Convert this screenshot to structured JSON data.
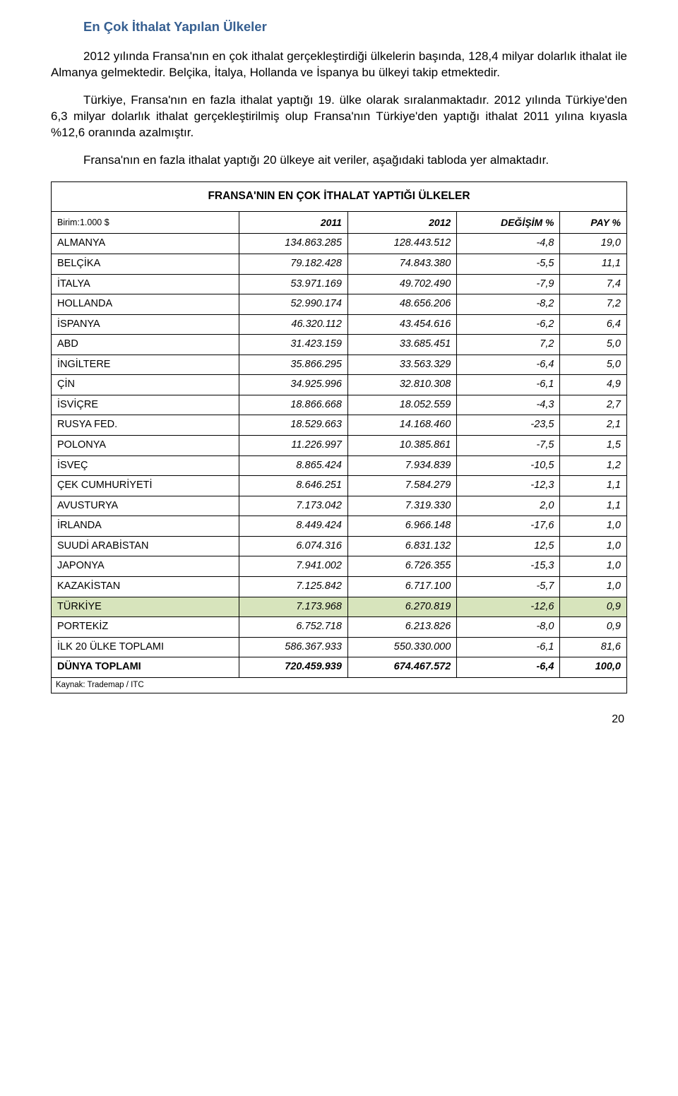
{
  "heading": "En Çok İthalat Yapılan Ülkeler",
  "para1": "2012 yılında Fransa'nın en çok ithalat gerçekleştirdiği ülkelerin başında, 128,4 milyar dolarlık ithalat ile Almanya gelmektedir. Belçika, İtalya, Hollanda ve İspanya bu ülkeyi takip etmektedir.",
  "para2": "Türkiye, Fransa'nın en fazla ithalat yaptığı 19. ülke olarak sıralanmaktadır. 2012 yılında Türkiye'den 6,3 milyar dolarlık ithalat gerçekleştirilmiş olup Fransa'nın Türkiye'den yaptığı ithalat 2011 yılına kıyasla %12,6 oranında azalmıştır.",
  "para3": "Fransa'nın en fazla ithalat yaptığı 20 ülkeye ait veriler, aşağıdaki tabloda yer almaktadır.",
  "table": {
    "title": "FRANSA'NIN EN ÇOK İTHALAT YAPTIĞI ÜLKELER",
    "unit_label": "Birim:1.000 $",
    "columns": [
      "2011",
      "2012",
      "DEĞİŞİM %",
      "PAY %"
    ],
    "rows": [
      {
        "country": "ALMANYA",
        "c2011": "134.863.285",
        "c2012": "128.443.512",
        "change": "-4,8",
        "share": "19,0"
      },
      {
        "country": "BELÇİKA",
        "c2011": "79.182.428",
        "c2012": "74.843.380",
        "change": "-5,5",
        "share": "11,1"
      },
      {
        "country": "İTALYA",
        "c2011": "53.971.169",
        "c2012": "49.702.490",
        "change": "-7,9",
        "share": "7,4"
      },
      {
        "country": "HOLLANDA",
        "c2011": "52.990.174",
        "c2012": "48.656.206",
        "change": "-8,2",
        "share": "7,2"
      },
      {
        "country": "İSPANYA",
        "c2011": "46.320.112",
        "c2012": "43.454.616",
        "change": "-6,2",
        "share": "6,4"
      },
      {
        "country": "ABD",
        "c2011": "31.423.159",
        "c2012": "33.685.451",
        "change": "7,2",
        "share": "5,0"
      },
      {
        "country": "İNGİLTERE",
        "c2011": "35.866.295",
        "c2012": "33.563.329",
        "change": "-6,4",
        "share": "5,0"
      },
      {
        "country": "ÇİN",
        "c2011": "34.925.996",
        "c2012": "32.810.308",
        "change": "-6,1",
        "share": "4,9"
      },
      {
        "country": "İSVİÇRE",
        "c2011": "18.866.668",
        "c2012": "18.052.559",
        "change": "-4,3",
        "share": "2,7"
      },
      {
        "country": "RUSYA FED.",
        "c2011": "18.529.663",
        "c2012": "14.168.460",
        "change": "-23,5",
        "share": "2,1"
      },
      {
        "country": "POLONYA",
        "c2011": "11.226.997",
        "c2012": "10.385.861",
        "change": "-7,5",
        "share": "1,5"
      },
      {
        "country": "İSVEÇ",
        "c2011": "8.865.424",
        "c2012": "7.934.839",
        "change": "-10,5",
        "share": "1,2"
      },
      {
        "country": "ÇEK CUMHURİYETİ",
        "c2011": "8.646.251",
        "c2012": "7.584.279",
        "change": "-12,3",
        "share": "1,1"
      },
      {
        "country": "AVUSTURYA",
        "c2011": "7.173.042",
        "c2012": "7.319.330",
        "change": "2,0",
        "share": "1,1"
      },
      {
        "country": "İRLANDA",
        "c2011": "8.449.424",
        "c2012": "6.966.148",
        "change": "-17,6",
        "share": "1,0"
      },
      {
        "country": "SUUDİ ARABİSTAN",
        "c2011": "6.074.316",
        "c2012": "6.831.132",
        "change": "12,5",
        "share": "1,0"
      },
      {
        "country": "JAPONYA",
        "c2011": "7.941.002",
        "c2012": "6.726.355",
        "change": "-15,3",
        "share": "1,0"
      },
      {
        "country": "KAZAKİSTAN",
        "c2011": "7.125.842",
        "c2012": "6.717.100",
        "change": "-5,7",
        "share": "1,0"
      },
      {
        "country": "TÜRKİYE",
        "c2011": "7.173.968",
        "c2012": "6.270.819",
        "change": "-12,6",
        "share": "0,9",
        "highlight": true
      },
      {
        "country": "PORTEKİZ",
        "c2011": "6.752.718",
        "c2012": "6.213.826",
        "change": "-8,0",
        "share": "0,9"
      },
      {
        "country": "İLK 20 ÜLKE TOPLAMI",
        "c2011": "586.367.933",
        "c2012": "550.330.000",
        "change": "-6,1",
        "share": "81,6"
      }
    ],
    "total_row": {
      "country": "DÜNYA TOPLAMI",
      "c2011": "720.459.939",
      "c2012": "674.467.572",
      "change": "-6,4",
      "share": "100,0"
    },
    "source": "Kaynak: Trademap / ITC"
  },
  "page_number": "20",
  "colors": {
    "heading": "#365f91",
    "highlight_bg": "#d7e4bc",
    "text": "#000000",
    "border": "#000000",
    "background": "#ffffff"
  }
}
